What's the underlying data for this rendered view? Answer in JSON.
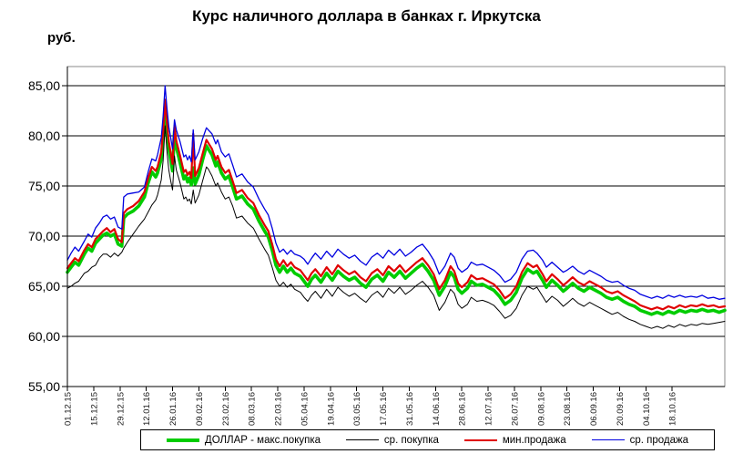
{
  "title": "Курс наличного доллара в банках г. Иркутска",
  "y_axis_unit": "руб.",
  "chart_data": {
    "type": "line",
    "title": "Курс наличного доллара в банках г. Иркутска",
    "ylabel": "руб.",
    "ylim": [
      55,
      85
    ],
    "grid": true,
    "legend_position": "bottom",
    "y_ticks": [
      85,
      80,
      75,
      70,
      65,
      60,
      55
    ],
    "y_tick_labels": [
      "85,00",
      "80,00",
      "75,00",
      "70,00",
      "65,00",
      "60,00",
      "55,00"
    ],
    "x_tick_labels": [
      "01.12.15",
      "15.12.15",
      "29.12.15",
      "12.01.16",
      "26.01.16",
      "09.02.16",
      "23.02.16",
      "08.03.16",
      "22.03.16",
      "05.04.16",
      "19.04.16",
      "03.05.16",
      "17.05.16",
      "31.05.16",
      "14.06.16",
      "28.06.16",
      "12.07.16",
      "26.07.16",
      "09.08.16",
      "23.08.16",
      "06.09.16",
      "20.09.16",
      "04.10.16",
      "18.10.16"
    ],
    "x_tick_interval_days": 14,
    "x_total_days": 350,
    "days": [
      0,
      2,
      4,
      6,
      9,
      11,
      13,
      15,
      17,
      19,
      21,
      23,
      25,
      27,
      29,
      30,
      32,
      35,
      38,
      41,
      43,
      45,
      47,
      48,
      50,
      51,
      52,
      53,
      54,
      55,
      56,
      57,
      58,
      60,
      62,
      63,
      64,
      65,
      66,
      67,
      68,
      70,
      72,
      74,
      75,
      77,
      79,
      80,
      82,
      84,
      86,
      88,
      90,
      93,
      96,
      99,
      102,
      105,
      107,
      109,
      111,
      113,
      115,
      117,
      119,
      121,
      124,
      126,
      128,
      130,
      132,
      135,
      138,
      141,
      144,
      147,
      150,
      153,
      156,
      159,
      162,
      165,
      168,
      171,
      174,
      177,
      180,
      183,
      186,
      189,
      192,
      195,
      198,
      201,
      204,
      206,
      208,
      210,
      213,
      215,
      218,
      221,
      224,
      227,
      230,
      233,
      236,
      239,
      242,
      245,
      248,
      250,
      253,
      255,
      258,
      261,
      264,
      266,
      269,
      272,
      275,
      278,
      281,
      284,
      287,
      290,
      293,
      296,
      299,
      302,
      305,
      308,
      311,
      314,
      317,
      320,
      323,
      326,
      329,
      332,
      335,
      338,
      341,
      344,
      347,
      350
    ],
    "series": [
      {
        "name": "ДОЛЛАР - макс.покупка",
        "color": "#00CC00",
        "width": 3.6,
        "values": [
          66.4,
          66.9,
          67.4,
          67.1,
          68.2,
          68.8,
          68.5,
          69.3,
          69.7,
          70.1,
          70.3,
          70.0,
          70.2,
          69.2,
          69.0,
          71.8,
          72.2,
          72.5,
          73.0,
          73.9,
          75.3,
          76.4,
          75.9,
          76.3,
          77.7,
          79.8,
          83.0,
          80.6,
          78.7,
          77.6,
          76.5,
          80.4,
          78.9,
          77.3,
          75.7,
          76.0,
          75.4,
          75.8,
          75.1,
          76.8,
          75.2,
          76.1,
          77.6,
          79.0,
          78.7,
          78.1,
          77.0,
          77.4,
          76.3,
          75.7,
          76.0,
          74.9,
          73.7,
          74.0,
          73.2,
          72.7,
          71.5,
          70.5,
          69.9,
          68.6,
          67.1,
          66.4,
          67.0,
          66.4,
          66.8,
          66.3,
          66.0,
          65.5,
          65.0,
          65.7,
          66.1,
          65.4,
          66.3,
          65.6,
          66.5,
          66.0,
          65.6,
          65.9,
          65.3,
          64.9,
          65.7,
          66.1,
          65.5,
          66.4,
          65.9,
          66.5,
          65.8,
          66.3,
          66.8,
          67.2,
          66.5,
          65.6,
          64.1,
          65.0,
          66.4,
          65.9,
          64.7,
          64.3,
          64.8,
          65.5,
          65.1,
          65.2,
          64.9,
          64.6,
          64.0,
          63.2,
          63.6,
          64.4,
          65.8,
          66.7,
          66.3,
          66.5,
          65.6,
          64.9,
          65.6,
          65.1,
          64.5,
          64.8,
          65.3,
          64.8,
          64.5,
          64.9,
          64.6,
          64.3,
          63.9,
          63.7,
          63.9,
          63.5,
          63.2,
          63.0,
          62.6,
          62.4,
          62.2,
          62.4,
          62.2,
          62.5,
          62.3,
          62.6,
          62.4,
          62.6,
          62.5,
          62.7,
          62.5,
          62.6,
          62.4,
          62.6
        ]
      },
      {
        "name": "ср. покупка",
        "color": "#000000",
        "width": 1,
        "values": [
          64.8,
          65.0,
          65.3,
          65.5,
          66.3,
          66.5,
          66.9,
          67.1,
          67.8,
          68.2,
          68.2,
          67.9,
          68.3,
          68.0,
          68.4,
          68.8,
          69.4,
          70.2,
          71.0,
          71.7,
          72.4,
          73.1,
          73.6,
          74.1,
          75.6,
          77.6,
          81.0,
          78.5,
          76.6,
          75.5,
          74.6,
          78.0,
          76.6,
          75.3,
          73.7,
          73.9,
          73.5,
          73.7,
          73.2,
          74.6,
          73.3,
          74.1,
          75.5,
          76.9,
          76.7,
          76.0,
          75.0,
          75.3,
          74.4,
          73.7,
          73.9,
          73.0,
          71.8,
          72.0,
          71.3,
          70.8,
          69.7,
          68.7,
          68.1,
          66.9,
          65.6,
          65.0,
          65.4,
          64.9,
          65.2,
          64.7,
          64.4,
          63.9,
          63.5,
          64.1,
          64.5,
          63.8,
          64.7,
          64.0,
          64.9,
          64.4,
          64.0,
          64.3,
          63.8,
          63.4,
          64.1,
          64.5,
          63.9,
          64.8,
          64.3,
          64.9,
          64.2,
          64.6,
          65.1,
          65.5,
          64.9,
          64.1,
          62.6,
          63.4,
          64.7,
          64.3,
          63.2,
          62.8,
          63.2,
          63.9,
          63.5,
          63.6,
          63.4,
          63.1,
          62.5,
          61.8,
          62.1,
          62.8,
          64.1,
          65.0,
          64.7,
          64.9,
          64.0,
          63.4,
          64.0,
          63.6,
          63.0,
          63.3,
          63.8,
          63.3,
          63.0,
          63.4,
          63.1,
          62.8,
          62.5,
          62.2,
          62.4,
          62.0,
          61.7,
          61.5,
          61.2,
          61.0,
          60.8,
          61.0,
          60.8,
          61.1,
          60.9,
          61.2,
          61.0,
          61.2,
          61.1,
          61.3,
          61.2,
          61.3,
          61.4,
          61.5
        ]
      },
      {
        "name": "мин.продажа",
        "color": "#E00000",
        "width": 2.2,
        "values": [
          66.8,
          67.3,
          67.8,
          67.5,
          68.6,
          69.2,
          68.9,
          69.7,
          70.1,
          70.5,
          70.8,
          70.4,
          70.7,
          69.7,
          69.4,
          72.3,
          72.7,
          73.0,
          73.5,
          74.4,
          75.8,
          76.9,
          76.5,
          76.9,
          78.4,
          80.5,
          83.6,
          81.3,
          79.4,
          78.3,
          77.2,
          81.0,
          79.5,
          78.0,
          76.4,
          76.6,
          76.1,
          76.4,
          75.8,
          80.2,
          76.0,
          76.8,
          78.2,
          79.6,
          79.3,
          78.7,
          77.6,
          78.0,
          76.9,
          76.3,
          76.6,
          75.5,
          74.3,
          74.6,
          73.8,
          73.3,
          72.1,
          71.1,
          70.5,
          69.2,
          67.7,
          67.0,
          67.6,
          67.0,
          67.4,
          66.9,
          66.6,
          66.1,
          65.6,
          66.3,
          66.7,
          66.0,
          66.9,
          66.2,
          67.1,
          66.6,
          66.2,
          66.5,
          65.9,
          65.5,
          66.3,
          66.7,
          66.1,
          67.0,
          66.5,
          67.1,
          66.4,
          66.9,
          67.4,
          67.8,
          67.1,
          66.2,
          64.7,
          65.6,
          67.0,
          66.5,
          65.3,
          64.9,
          65.4,
          66.1,
          65.7,
          65.8,
          65.5,
          65.2,
          64.6,
          63.8,
          64.2,
          65.0,
          66.4,
          67.3,
          66.9,
          67.1,
          66.2,
          65.5,
          66.2,
          65.7,
          65.1,
          65.4,
          65.9,
          65.4,
          65.1,
          65.5,
          65.2,
          64.9,
          64.5,
          64.3,
          64.5,
          64.1,
          63.8,
          63.5,
          63.1,
          62.9,
          62.7,
          62.9,
          62.7,
          63.0,
          62.8,
          63.1,
          62.9,
          63.1,
          63.0,
          63.2,
          63.0,
          63.1,
          62.9,
          63.0
        ]
      },
      {
        "name": "ср. продажа",
        "color": "#0000E0",
        "width": 1.3,
        "values": [
          67.6,
          68.3,
          68.9,
          68.5,
          69.5,
          70.2,
          69.9,
          70.8,
          71.3,
          71.9,
          72.1,
          71.7,
          71.9,
          70.9,
          70.7,
          73.9,
          74.2,
          74.3,
          74.4,
          74.9,
          76.4,
          77.7,
          77.5,
          78.1,
          79.8,
          82.0,
          85.0,
          82.8,
          80.9,
          79.8,
          78.7,
          81.6,
          80.6,
          79.4,
          77.9,
          78.1,
          77.6,
          78.0,
          77.4,
          80.6,
          77.6,
          78.4,
          79.7,
          80.8,
          80.6,
          80.2,
          79.2,
          79.6,
          78.4,
          77.9,
          78.2,
          77.1,
          75.9,
          76.2,
          75.4,
          74.9,
          73.7,
          72.7,
          72.1,
          70.8,
          69.3,
          68.4,
          68.7,
          68.2,
          68.6,
          68.2,
          68.0,
          67.7,
          67.2,
          67.8,
          68.3,
          67.7,
          68.5,
          67.9,
          68.7,
          68.2,
          67.8,
          68.1,
          67.5,
          67.1,
          67.9,
          68.3,
          67.8,
          68.6,
          68.1,
          68.7,
          68.0,
          68.4,
          68.9,
          69.2,
          68.5,
          67.6,
          66.2,
          67.0,
          68.3,
          67.9,
          66.8,
          66.4,
          66.8,
          67.4,
          67.1,
          67.2,
          66.9,
          66.6,
          66.1,
          65.4,
          65.7,
          66.4,
          67.7,
          68.5,
          68.6,
          68.3,
          67.6,
          66.9,
          67.4,
          66.9,
          66.4,
          66.6,
          67.0,
          66.5,
          66.2,
          66.6,
          66.3,
          66.0,
          65.6,
          65.4,
          65.5,
          65.1,
          64.8,
          64.6,
          64.2,
          64.0,
          63.8,
          64.0,
          63.8,
          64.1,
          63.9,
          64.1,
          63.9,
          64.0,
          63.9,
          64.1,
          63.8,
          63.9,
          63.7,
          63.8
        ]
      }
    ]
  },
  "legend": {
    "items": [
      {
        "label": "ДОЛЛАР - макс.покупка"
      },
      {
        "label": "ср. покупка"
      },
      {
        "label": "мин.продажа"
      },
      {
        "label": "ср. продажа"
      }
    ]
  }
}
